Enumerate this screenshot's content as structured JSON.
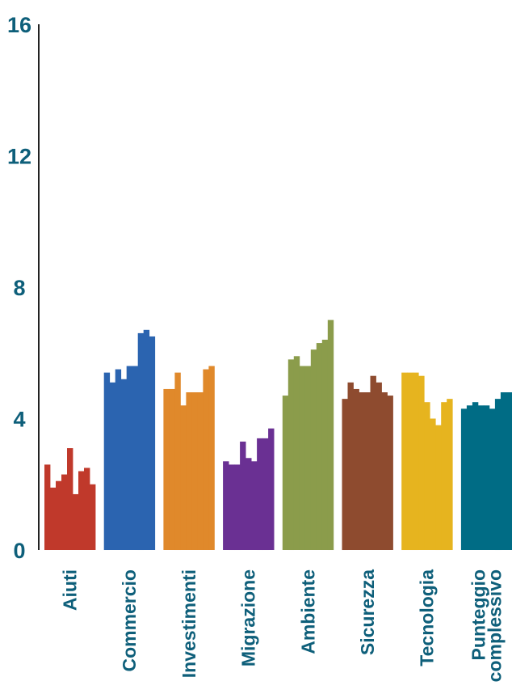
{
  "chart_data": {
    "type": "bar",
    "title": "",
    "xlabel": "",
    "ylabel": "",
    "ylim": [
      0,
      16
    ],
    "yticks": [
      "0",
      "4",
      "8",
      "12",
      "16"
    ],
    "grid": false,
    "legend": "none",
    "categories": [
      {
        "label_lines": [
          "Aiuti"
        ],
        "color": "#c0392b",
        "values": [
          2.6,
          1.9,
          2.1,
          2.3,
          3.1,
          1.7,
          2.4,
          2.5,
          2.0
        ]
      },
      {
        "label_lines": [
          "Commercio"
        ],
        "color": "#2b64b0",
        "values": [
          5.4,
          5.1,
          5.5,
          5.2,
          5.6,
          5.6,
          6.6,
          6.7,
          6.5
        ]
      },
      {
        "label_lines": [
          "Investimenti"
        ],
        "color": "#e0892b",
        "values": [
          4.9,
          4.9,
          5.4,
          4.4,
          4.8,
          4.8,
          4.8,
          5.5,
          5.6
        ]
      },
      {
        "label_lines": [
          "Migrazione"
        ],
        "color": "#6a3093",
        "values": [
          2.7,
          2.6,
          2.6,
          3.3,
          2.8,
          2.7,
          3.4,
          3.4,
          3.7
        ]
      },
      {
        "label_lines": [
          "Ambiente"
        ],
        "color": "#8b9c4b",
        "values": [
          4.7,
          5.8,
          5.9,
          5.6,
          5.6,
          6.1,
          6.3,
          6.4,
          7.0
        ]
      },
      {
        "label_lines": [
          "Sicurezza"
        ],
        "color": "#8e4b2f",
        "values": [
          4.6,
          5.1,
          4.9,
          4.8,
          4.8,
          5.3,
          5.1,
          4.8,
          4.7
        ]
      },
      {
        "label_lines": [
          "Tecnologia"
        ],
        "color": "#e6b41f",
        "values": [
          5.4,
          5.4,
          5.4,
          5.3,
          4.5,
          4.0,
          3.8,
          4.5,
          4.6
        ]
      },
      {
        "label_lines": [
          "Punteggio",
          "complessivo"
        ],
        "color": "#006c85",
        "values": [
          4.3,
          4.4,
          4.5,
          4.4,
          4.4,
          4.3,
          4.6,
          4.8,
          4.8
        ]
      }
    ]
  }
}
